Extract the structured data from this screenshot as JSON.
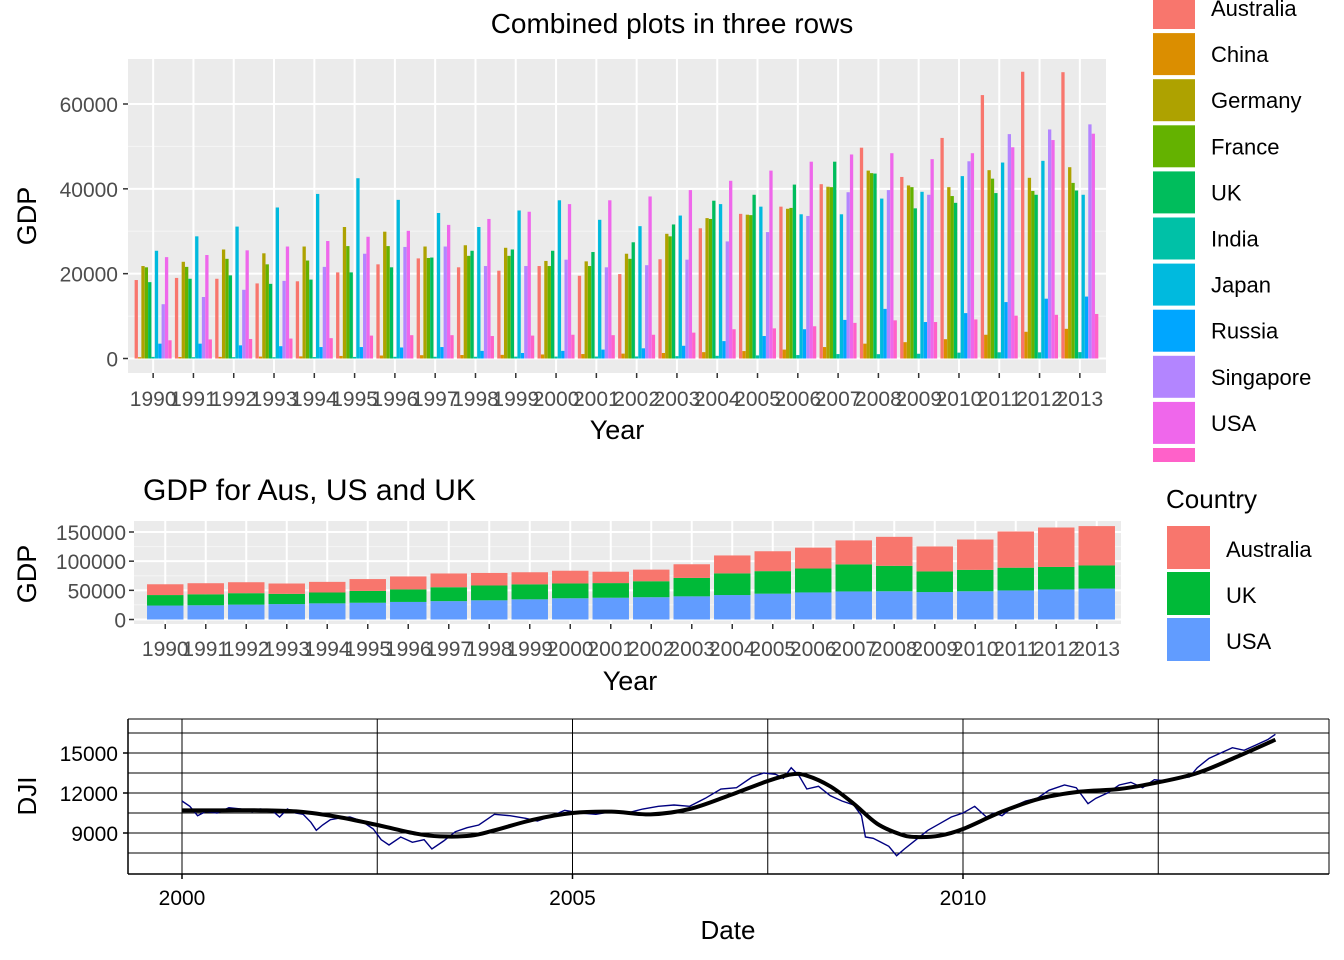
{
  "chart_data": [
    {
      "type": "bar",
      "title": "Combined plots in three rows",
      "xlabel": "Year",
      "ylabel": "GDP",
      "ylim": [
        0,
        70000
      ],
      "yticks": [
        0,
        20000,
        40000,
        60000
      ],
      "ytick_labels": [
        "0",
        "20000",
        "40000",
        "60000"
      ],
      "grid": true,
      "legend_position": "right",
      "categories": [
        "1990",
        "1991",
        "1992",
        "1993",
        "1994",
        "1995",
        "1996",
        "1997",
        "1998",
        "1999",
        "2000",
        "2001",
        "2002",
        "2003",
        "2004",
        "2005",
        "2006",
        "2007",
        "2008",
        "2009",
        "2010",
        "2011",
        "2012",
        "2013"
      ],
      "series": [
        {
          "name": "Australia",
          "color": "#F8766D",
          "values": [
            18500,
            19000,
            18800,
            17700,
            18200,
            20300,
            22200,
            23600,
            21500,
            20700,
            21800,
            19500,
            19900,
            23400,
            30700,
            34100,
            35800,
            41100,
            49700,
            42800,
            52000,
            62100,
            67600,
            67500
          ]
        },
        {
          "name": "China",
          "color": "#DB8E00",
          "values": [
            300,
            350,
            380,
            450,
            500,
            600,
            700,
            780,
            820,
            860,
            950,
            1050,
            1150,
            1300,
            1500,
            1750,
            2100,
            2700,
            3500,
            3850,
            4550,
            5600,
            6300,
            7000
          ]
        },
        {
          "name": "Germany",
          "color": "#AEA200",
          "values": [
            21800,
            22800,
            25700,
            24800,
            26400,
            31000,
            29900,
            26400,
            26700,
            26100,
            23000,
            22900,
            24700,
            29400,
            33100,
            33900,
            35300,
            40500,
            44300,
            40800,
            40400,
            44400,
            42600,
            45100
          ]
        },
        {
          "name": "France",
          "color": "#64B200",
          "values": [
            21500,
            21600,
            23500,
            22200,
            23100,
            26500,
            26500,
            23700,
            24200,
            24200,
            21800,
            21800,
            23500,
            28800,
            32900,
            33800,
            35500,
            40400,
            43700,
            40400,
            38300,
            42400,
            39500,
            41400
          ]
        },
        {
          "name": "UK",
          "color": "#00BD5C",
          "values": [
            18000,
            18800,
            19600,
            17600,
            18600,
            20300,
            21500,
            23800,
            25400,
            25700,
            25400,
            25100,
            27400,
            31600,
            37200,
            38600,
            41000,
            46400,
            43600,
            35400,
            36700,
            39000,
            38600,
            39600
          ]
        },
        {
          "name": "India",
          "color": "#00C1A7",
          "values": [
            380,
            310,
            320,
            300,
            340,
            370,
            400,
            410,
            410,
            440,
            450,
            460,
            480,
            550,
            630,
            730,
            810,
            1040,
            1020,
            1120,
            1380,
            1460,
            1450,
            1500
          ]
        },
        {
          "name": "Japan",
          "color": "#00BADE",
          "values": [
            25400,
            28800,
            31100,
            35600,
            38800,
            42500,
            37400,
            34300,
            31000,
            34900,
            37300,
            32700,
            31200,
            33700,
            36400,
            35800,
            34000,
            34000,
            37700,
            39300,
            43000,
            46200,
            46600,
            38600
          ]
        },
        {
          "name": "Russia",
          "color": "#00A6FF",
          "values": [
            3500,
            3500,
            3100,
            2900,
            2700,
            2700,
            2600,
            2700,
            1800,
            1300,
            1800,
            2100,
            2400,
            3000,
            4100,
            5300,
            6900,
            9100,
            11700,
            8600,
            10700,
            13300,
            14100,
            14600
          ]
        },
        {
          "name": "Singapore",
          "color": "#B385FF",
          "values": [
            12800,
            14500,
            16200,
            18300,
            21600,
            24700,
            26300,
            26400,
            21800,
            21800,
            23300,
            21500,
            22000,
            23300,
            27600,
            29800,
            33600,
            39200,
            39700,
            38600,
            46500,
            52900,
            54000,
            55200
          ]
        },
        {
          "name": "USA",
          "color": "#EF67EB",
          "values": [
            23900,
            24400,
            25500,
            26400,
            27700,
            28700,
            30100,
            31500,
            32900,
            34600,
            36400,
            37300,
            38200,
            39700,
            41900,
            44300,
            46400,
            48100,
            48400,
            47000,
            48400,
            49800,
            51500,
            53000
          ]
        },
        {
          "name": "",
          "color": "#FF61C9",
          "values": [
            4300,
            4500,
            4600,
            4700,
            4800,
            5400,
            5500,
            5500,
            5300,
            5400,
            5600,
            5500,
            5600,
            6100,
            6900,
            7100,
            7600,
            8400,
            9000,
            8600,
            9200,
            10100,
            10300,
            10500
          ]
        }
      ]
    },
    {
      "type": "bar",
      "stacked": true,
      "title": "GDP for Aus, US and UK",
      "xlabel": "Year",
      "ylabel": "GDP",
      "ylim": [
        0,
        165000
      ],
      "yticks": [
        0,
        50000,
        100000,
        150000
      ],
      "ytick_labels": [
        "0",
        "50000",
        "100000",
        "150000"
      ],
      "grid": true,
      "legend_title": "Country",
      "legend_position": "right",
      "categories": [
        "1990",
        "1991",
        "1992",
        "1993",
        "1994",
        "1995",
        "1996",
        "1997",
        "1998",
        "1999",
        "2000",
        "2001",
        "2002",
        "2003",
        "2004",
        "2005",
        "2006",
        "2007",
        "2008",
        "2009",
        "2010",
        "2011",
        "2012",
        "2013"
      ],
      "series": [
        {
          "name": "USA",
          "color": "#619CFF",
          "values": [
            23900,
            24400,
            25500,
            26400,
            27700,
            28700,
            30100,
            31500,
            32900,
            34600,
            36400,
            37300,
            38200,
            39700,
            41900,
            44300,
            46400,
            48100,
            48400,
            47000,
            48400,
            49800,
            51500,
            53000
          ]
        },
        {
          "name": "UK",
          "color": "#00BA38",
          "values": [
            18000,
            18800,
            19600,
            17600,
            18600,
            20300,
            21500,
            23800,
            25400,
            25700,
            25400,
            25100,
            27400,
            31600,
            37200,
            38600,
            41000,
            46400,
            43600,
            35400,
            36700,
            39000,
            38600,
            39600
          ]
        },
        {
          "name": "Australia",
          "color": "#F8766D",
          "values": [
            18500,
            19000,
            18800,
            17700,
            18200,
            20300,
            22200,
            23600,
            21500,
            20700,
            21800,
            19500,
            19900,
            23400,
            30700,
            34100,
            35800,
            41100,
            49700,
            42800,
            52000,
            62100,
            67600,
            67500
          ]
        }
      ]
    },
    {
      "type": "line",
      "title": "",
      "xlabel": "Date",
      "ylabel": "DJI",
      "xlim": [
        1999.35,
        2014.7
      ],
      "ylim": [
        6700,
        17200
      ],
      "xticks": [
        2000,
        2005,
        2010
      ],
      "xtick_labels": [
        "2000",
        "2005",
        "2010"
      ],
      "yticks": [
        9000,
        12000,
        15000
      ],
      "ytick_labels": [
        "9000",
        "12000",
        "15000"
      ],
      "grid": true,
      "series": [
        {
          "name": "",
          "color": "#000080",
          "x": [
            2000.0,
            2000.1,
            2000.2,
            2000.3,
            2000.45,
            2000.6,
            2000.75,
            2000.9,
            2001.0,
            2001.15,
            2001.25,
            2001.35,
            2001.45,
            2001.55,
            2001.65,
            2001.72,
            2001.8,
            2001.9,
            2002.0,
            2002.15,
            2002.3,
            2002.45,
            2002.55,
            2002.65,
            2002.8,
            2002.95,
            2003.1,
            2003.2,
            2003.35,
            2003.5,
            2003.65,
            2003.8,
            2004.0,
            2004.2,
            2004.4,
            2004.55,
            2004.7,
            2004.9,
            2005.1,
            2005.3,
            2005.5,
            2005.7,
            2005.9,
            2006.1,
            2006.3,
            2006.5,
            2006.7,
            2006.9,
            2007.1,
            2007.3,
            2007.45,
            2007.6,
            2007.7,
            2007.8,
            2007.9,
            2008.0,
            2008.15,
            2008.3,
            2008.45,
            2008.6,
            2008.7,
            2008.75,
            2008.85,
            2008.95,
            2009.05,
            2009.15,
            2009.25,
            2009.4,
            2009.55,
            2009.7,
            2009.85,
            2010.0,
            2010.15,
            2010.3,
            2010.4,
            2010.5,
            2010.65,
            2010.8,
            2010.95,
            2011.1,
            2011.3,
            2011.45,
            2011.6,
            2011.7,
            2011.85,
            2012.0,
            2012.15,
            2012.3,
            2012.45,
            2012.6,
            2012.75,
            2012.9,
            2013.0,
            2013.15,
            2013.3,
            2013.45,
            2013.6,
            2013.75,
            2013.9,
            2014.0
          ],
          "values": [
            11400,
            11000,
            10300,
            10600,
            10500,
            10900,
            10800,
            10600,
            10800,
            10700,
            10200,
            10800,
            10500,
            10400,
            9800,
            9200,
            9600,
            10000,
            10100,
            10200,
            9900,
            9300,
            8500,
            8100,
            8700,
            8300,
            8500,
            7800,
            8400,
            9100,
            9400,
            9600,
            10400,
            10300,
            10100,
            9900,
            10200,
            10700,
            10500,
            10400,
            10600,
            10500,
            10800,
            11000,
            11100,
            11000,
            11600,
            12300,
            12400,
            13200,
            13500,
            13400,
            13100,
            13900,
            13300,
            12300,
            12500,
            11800,
            11400,
            11100,
            10300,
            8700,
            8600,
            8300,
            8000,
            7300,
            7800,
            8500,
            9200,
            9700,
            10200,
            10500,
            11000,
            10200,
            10500,
            10300,
            11000,
            11400,
            11600,
            12200,
            12600,
            12400,
            11200,
            11600,
            12000,
            12600,
            12800,
            12400,
            13000,
            12900,
            13100,
            13200,
            13900,
            14600,
            15000,
            15400,
            15200,
            15600,
            16000,
            16400
          ]
        },
        {
          "name": "",
          "color": "#000000",
          "smooth": true,
          "x": [
            2000.0,
            2000.5,
            2001.0,
            2001.5,
            2002.0,
            2002.5,
            2003.0,
            2003.3,
            2003.7,
            2004.0,
            2004.5,
            2005.0,
            2005.5,
            2006.0,
            2006.5,
            2007.0,
            2007.5,
            2007.8,
            2008.0,
            2008.3,
            2008.6,
            2008.9,
            2009.2,
            2009.4,
            2009.7,
            2010.0,
            2010.5,
            2011.0,
            2011.5,
            2012.0,
            2012.5,
            2013.0,
            2013.5,
            2014.0
          ],
          "values": [
            10700,
            10700,
            10700,
            10600,
            10200,
            9600,
            8950,
            8750,
            8800,
            9200,
            10000,
            10500,
            10600,
            10400,
            10800,
            11800,
            12900,
            13400,
            13300,
            12500,
            11200,
            9700,
            8900,
            8700,
            8800,
            9300,
            10600,
            11600,
            12100,
            12300,
            12800,
            13500,
            14700,
            16000
          ]
        }
      ]
    }
  ]
}
